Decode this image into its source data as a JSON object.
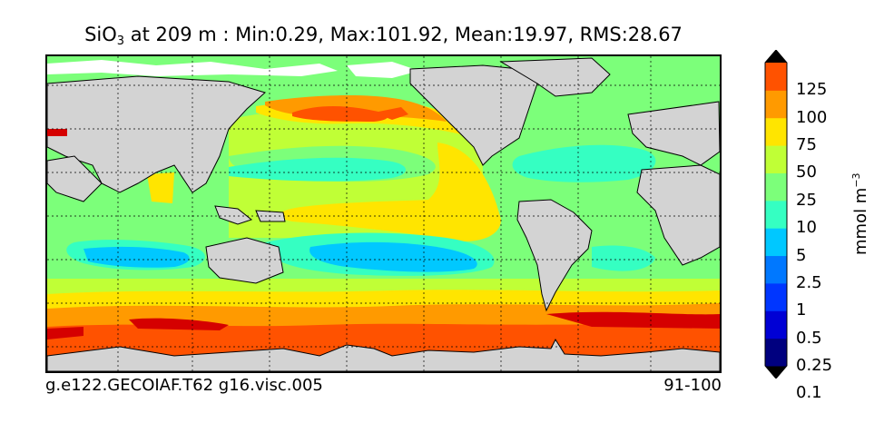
{
  "title": {
    "species": "SiO",
    "subscript": "3",
    "rest": " at 209 m : Min:0.29, Max:101.92, Mean:19.97, RMS:28.67"
  },
  "footer": {
    "left": "g.e122.GECOIAF.T62 g16.visc.005",
    "right": "91-100"
  },
  "colorbar": {
    "units_base": "mmol m",
    "units_exp": "−3",
    "labels": [
      "125",
      "100",
      "75",
      "50",
      "25",
      "10",
      "5",
      "2.5",
      "1",
      "0.5",
      "0.25",
      "0.1"
    ],
    "colors": [
      "#00007f",
      "#0000d5",
      "#0036ff",
      "#0078ff",
      "#00c8ff",
      "#35ffc2",
      "#7cff7a",
      "#c0ff36",
      "#ffe500",
      "#ff9a00",
      "#ff5200",
      "#d50000",
      "#7f0000"
    ]
  },
  "map_colors": {
    "land": "#d3d3d3",
    "ice": "#ffffff"
  }
}
